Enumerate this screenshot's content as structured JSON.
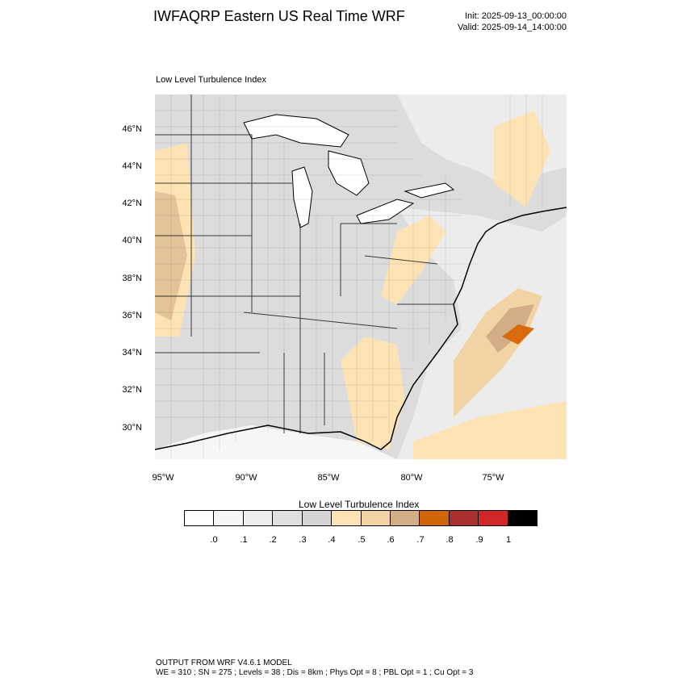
{
  "header": {
    "title": "IWFAQRP Eastern US Real Time WRF",
    "init": "Init: 2025-09-13_00:00:00",
    "valid": "Valid: 2025-09-14_14:00:00"
  },
  "map": {
    "field_label": "Low Level Turbulence Index",
    "lat_labels": [
      "46°N",
      "44°N",
      "42°N",
      "40°N",
      "38°N",
      "36°N",
      "34°N",
      "32°N",
      "30°N"
    ],
    "lon_labels": [
      "95°W",
      "90°W",
      "85°W",
      "80°W",
      "75°W"
    ],
    "colors": {
      "land_gray": "#dcdcdc",
      "light_gray": "#ececec",
      "tan_light": "#fde3b4",
      "tan_mid": "#f2d3a4",
      "tan_dark": "#d3ad86",
      "orange": "#d96a0e",
      "water": "#ffffff"
    }
  },
  "colorbar": {
    "title": "Low Level Turbulence Index",
    "labels": [
      ".0",
      ".1",
      ".2",
      ".3",
      ".4",
      ".5",
      ".6",
      ".7",
      ".8",
      ".9",
      "1"
    ],
    "colors": [
      "#ffffff",
      "#f6f6f6",
      "#eeeeee",
      "#e0e0e0",
      "#d4d4d4",
      "#fde3b4",
      "#f2d3a4",
      "#d3ad86",
      "#d0660a",
      "#aa3030",
      "#d02828",
      "#000000"
    ]
  },
  "footer": {
    "line1": "OUTPUT FROM WRF V4.6.1 MODEL",
    "line2": "WE = 310 ; SN = 275 ; Levels = 38 ; Dis = 8km ; Phys Opt = 8 ; PBL Opt = 1 ; Cu Opt = 3"
  }
}
